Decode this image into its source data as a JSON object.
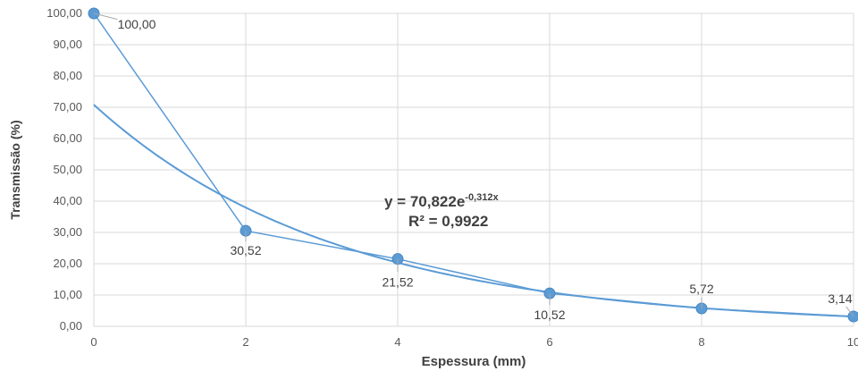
{
  "chart_data": {
    "type": "scatter",
    "xlabel": "Espessura (mm)",
    "ylabel": "Transmissão (%)",
    "xlim": [
      0,
      10
    ],
    "ylim": [
      0,
      100
    ],
    "x_ticks": [
      "0",
      "2",
      "4",
      "6",
      "8",
      "10"
    ],
    "y_ticks": [
      "0,00",
      "10,00",
      "20,00",
      "30,00",
      "40,00",
      "50,00",
      "60,00",
      "70,00",
      "80,00",
      "90,00",
      "100,00"
    ],
    "grid": true,
    "series": [
      {
        "x": [
          0,
          2,
          4,
          6,
          8,
          10
        ],
        "y": [
          100.0,
          30.52,
          21.52,
          10.52,
          5.72,
          3.14
        ],
        "labels": [
          "100,00",
          "30,52",
          "21,52",
          "10,52",
          "5,72",
          "3,14"
        ],
        "color": "#5B9BD5"
      }
    ],
    "trendline": {
      "type": "exponential",
      "a": 70.822,
      "b": -0.312,
      "equation_base": "y = 70,822e",
      "equation_exp": "-0,312x",
      "r2_label": "R² = 0,9922",
      "color": "#5B9BD5"
    }
  }
}
